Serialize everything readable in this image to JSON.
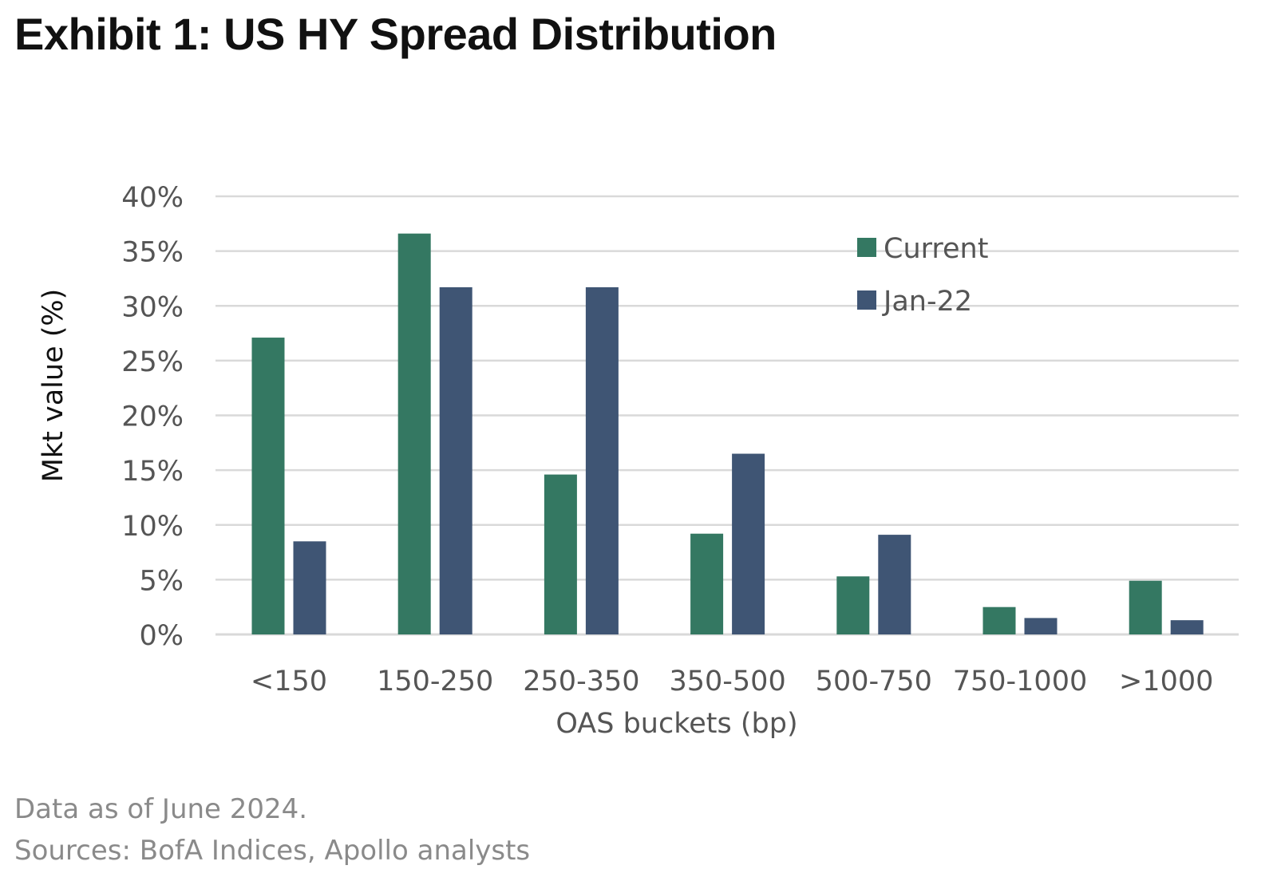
{
  "title": "Exhibit 1: US HY Spread Distribution",
  "colors": {
    "current": "#347862",
    "jan22": "#3f5574",
    "grid": "#d9d9d9",
    "axis_text": "#555555"
  },
  "notes": {
    "line1": "Data as of June 2024.",
    "line2": "Sources: BofA Indices, Apollo analysts"
  },
  "chart_data": {
    "type": "bar",
    "categories": [
      "<150",
      "150-250",
      "250-350",
      "350-500",
      "500-750",
      "750-1000",
      ">1000"
    ],
    "series": [
      {
        "name": "Current",
        "values": [
          27.1,
          36.6,
          14.6,
          9.2,
          5.3,
          2.5,
          4.9
        ]
      },
      {
        "name": "Jan-22",
        "values": [
          8.5,
          31.7,
          31.7,
          16.5,
          9.1,
          1.5,
          1.3
        ]
      }
    ],
    "xlabel": "OAS buckets (bp)",
    "ylabel": "Mkt value (%)",
    "ylim": [
      0,
      40
    ],
    "yticks": [
      "0%",
      "5%",
      "10%",
      "15%",
      "20%",
      "25%",
      "30%",
      "35%",
      "40%"
    ],
    "grid": true,
    "legend_position": "top-right"
  }
}
